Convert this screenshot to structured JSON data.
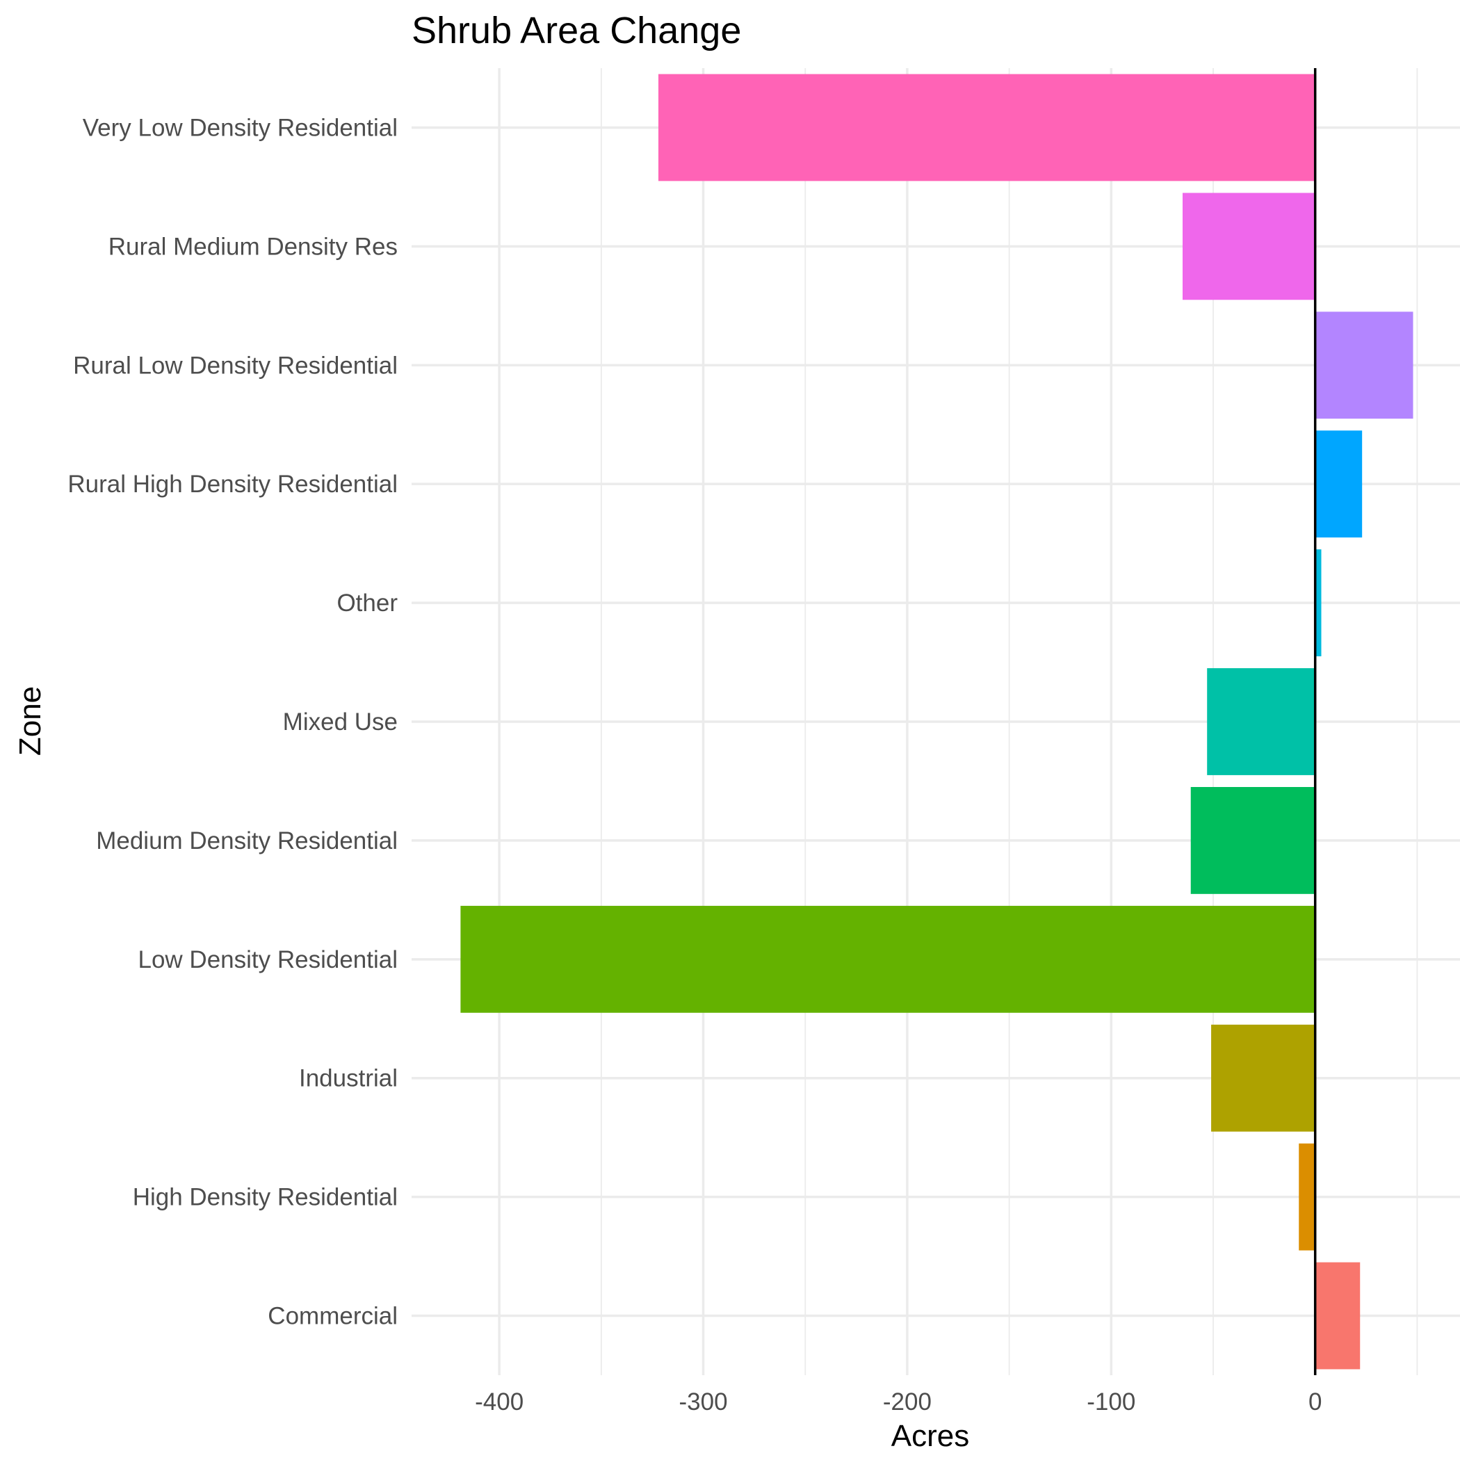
{
  "chart_data": {
    "type": "bar",
    "orientation": "horizontal",
    "title": "Shrub Area Change",
    "xlabel": "Acres",
    "ylabel": "Zone",
    "categories": [
      "Commercial",
      "High Density Residential",
      "Industrial",
      "Low Density Residential",
      "Medium Density Residential",
      "Mixed Use",
      "Other",
      "Rural High Density Residential",
      "Rural Low Density Residential",
      "Rural Medium Density Res",
      "Very Low Density Residential"
    ],
    "values": [
      22,
      -8,
      -51,
      -419,
      -61,
      -53,
      3,
      23,
      48,
      -65,
      -322
    ],
    "colors": [
      "#F8766D",
      "#DB8E00",
      "#AEA200",
      "#64B200",
      "#00BD5C",
      "#00C1A7",
      "#00BADE",
      "#00A6FF",
      "#B385FF",
      "#EF67EB",
      "#FF63B6"
    ],
    "xlim": [
      -443,
      71
    ],
    "xticks": [
      -400,
      -300,
      -200,
      -100,
      0
    ],
    "xtick_labels": [
      "-400",
      "-300",
      "-200",
      "-100",
      "0"
    ],
    "x_minor_ticks": [
      -350,
      -250,
      -150,
      -50,
      50
    ],
    "reference_line": 0,
    "grid": true,
    "legend": "none"
  }
}
